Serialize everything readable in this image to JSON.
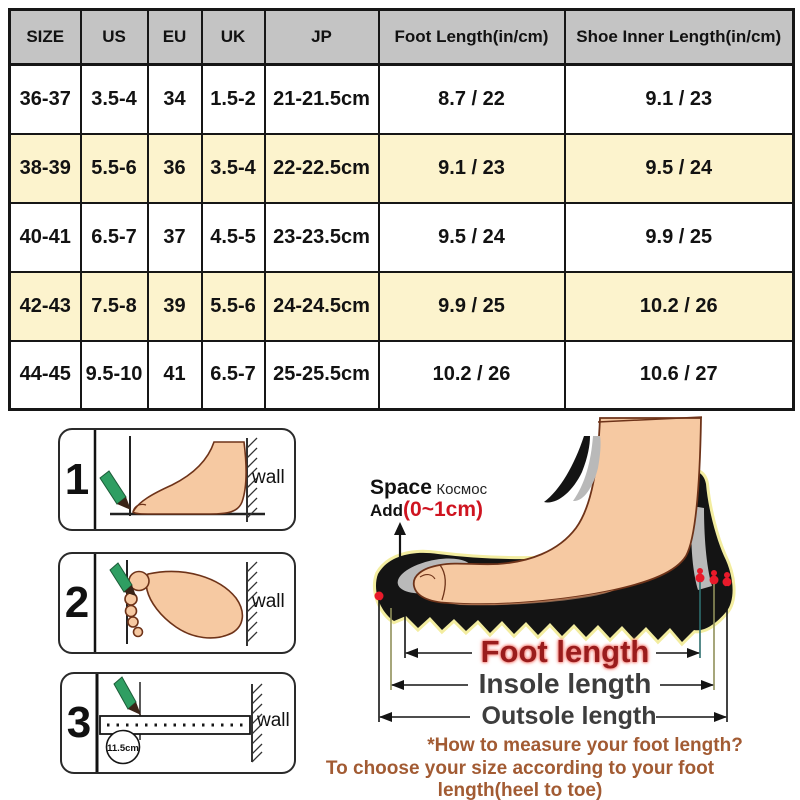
{
  "chart_data": {
    "type": "table",
    "columns": [
      "SIZE",
      "US",
      "EU",
      "UK",
      "JP",
      "Foot Length(in/cm)",
      "Shoe Inner Length(in/cm)"
    ],
    "rows": [
      [
        "36-37",
        "3.5-4",
        "34",
        "1.5-2",
        "21-21.5cm",
        "8.7 / 22",
        "9.1 / 23"
      ],
      [
        "38-39",
        "5.5-6",
        "36",
        "3.5-4",
        "22-22.5cm",
        "9.1 / 23",
        "9.5 / 24"
      ],
      [
        "40-41",
        "6.5-7",
        "37",
        "4.5-5",
        "23-23.5cm",
        "9.5 / 24",
        "9.9 / 25"
      ],
      [
        "42-43",
        "7.5-8",
        "39",
        "5.5-6",
        "24-24.5cm",
        "9.9 / 25",
        "10.2 / 26"
      ],
      [
        "44-45",
        "9.5-10",
        "41",
        "6.5-7",
        "25-25.5cm",
        "10.2 / 26",
        "10.6 / 27"
      ]
    ],
    "highlighted_rows": [
      2,
      4
    ],
    "title": ""
  },
  "steps": [
    {
      "number": "1",
      "wall_label": "wall"
    },
    {
      "number": "2",
      "wall_label": "wall"
    },
    {
      "number": "3",
      "wall_label": "wall",
      "ruler_value": "11.5cm"
    }
  ],
  "diagram": {
    "space_label": "Space",
    "space_label_ru": "Космос",
    "add_label": "Add",
    "add_range": "(0~1cm)",
    "foot_length_label": "Foot length",
    "insole_length_label": "Insole length",
    "outsole_length_label": "Outsole length"
  },
  "footer": {
    "line1": "*How to measure your foot length?",
    "line2": "To choose your size according to your foot length(heel to toe)"
  },
  "colors": {
    "header_bg": "#c4c4c4",
    "row_highlight": "#fcf3cd",
    "accent_red": "#cf1420",
    "foot_length_red": "#9a1c1c",
    "brown_text": "#a25b33",
    "pencil_green": "#2f9e62",
    "skin": "#f6c9a2",
    "sole_black": "#141414",
    "insole_gray": "#b9b9b9",
    "glow_yellow": "#f3eda0"
  }
}
